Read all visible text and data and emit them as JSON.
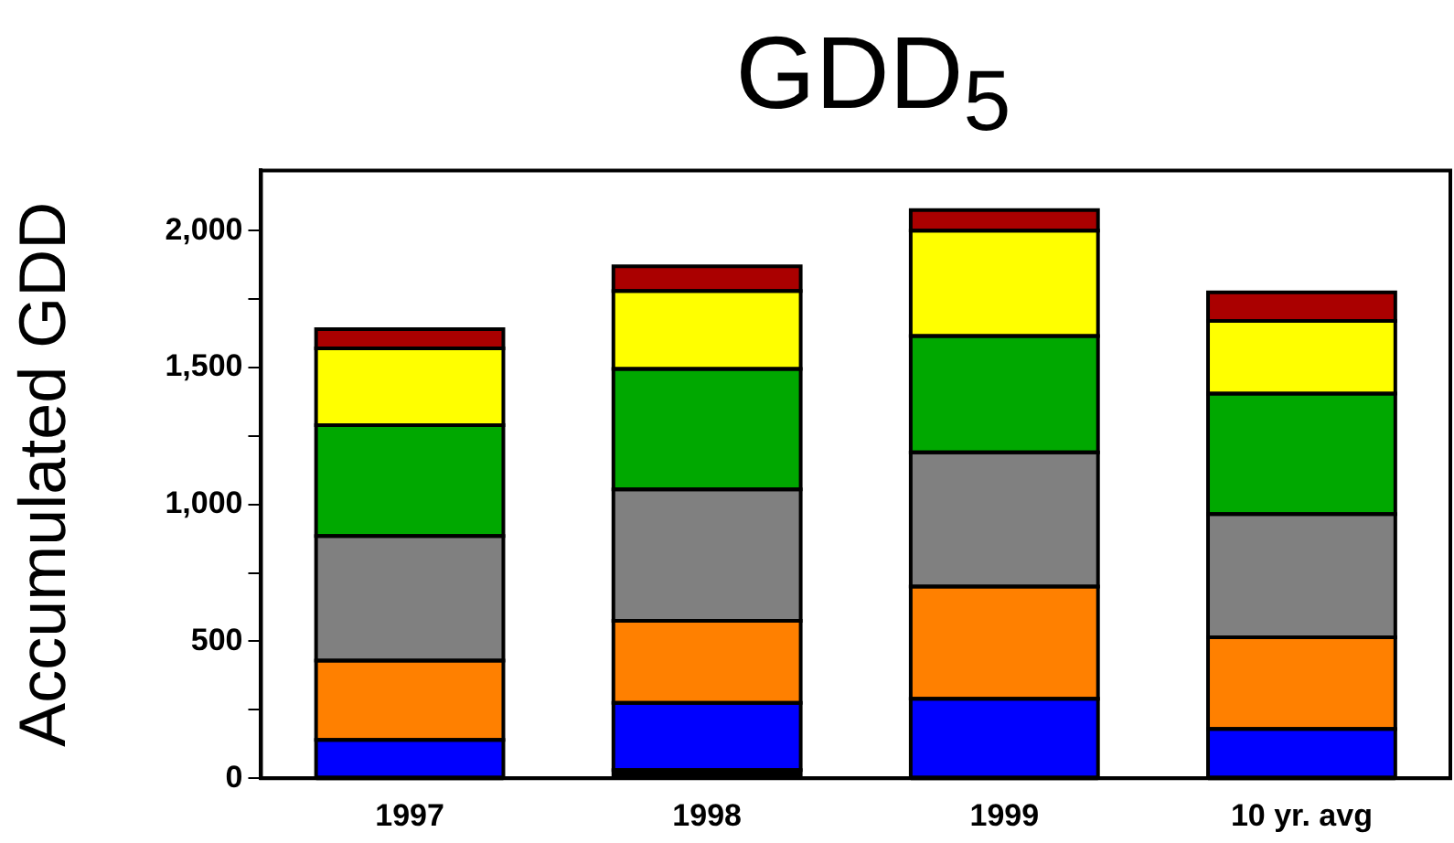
{
  "chart_data": {
    "type": "bar",
    "title": "GDD$_{5}$",
    "ylabel": "Accumulated GDD",
    "categories": [
      "1997",
      "1998",
      "1999",
      "10 yr. avg"
    ],
    "stacked": true,
    "series": [
      {
        "color": "#000000",
        "values": [
          null,
          30,
          null,
          null
        ]
      },
      {
        "color": "#0000ff",
        "values": [
          140,
          245,
          290,
          180
        ]
      },
      {
        "color": "#ff8000",
        "values": [
          290,
          300,
          410,
          335
        ]
      },
      {
        "color": "#808080",
        "values": [
          455,
          480,
          490,
          450
        ]
      },
      {
        "color": "#00a800",
        "values": [
          405,
          440,
          425,
          440
        ]
      },
      {
        "color": "#ffff00",
        "values": [
          280,
          285,
          385,
          265
        ]
      },
      {
        "color": "#aa0000",
        "values": [
          70,
          90,
          75,
          105
        ]
      }
    ],
    "ylim": [
      0,
      2220
    ],
    "yticks": [
      0,
      {
        "value": 250,
        "label": null
      },
      500,
      {
        "value": 750,
        "label": null
      },
      {
        "value": 1000,
        "label": "1,000"
      },
      {
        "value": 1250,
        "label": null
      },
      {
        "value": 1500,
        "label": "1,500"
      },
      {
        "value": 1750,
        "label": null
      },
      {
        "value": 2000,
        "label": "2,000"
      }
    ],
    "legend": false
  }
}
